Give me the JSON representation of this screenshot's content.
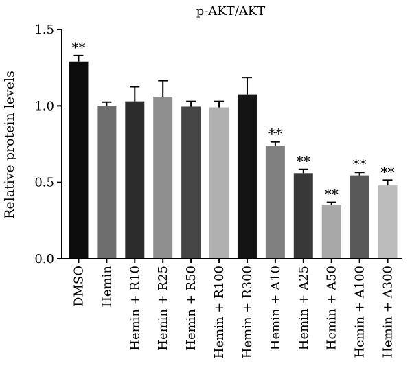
{
  "chart_data": {
    "type": "bar",
    "title": "p-AKT/AKT",
    "ylabel": "Relative protein levels",
    "xlabel": "",
    "ylim": [
      0,
      1.5
    ],
    "yticks": [
      0.0,
      0.5,
      1.0,
      1.5
    ],
    "ytick_labels": [
      "0.0",
      "0.5",
      "1.0",
      "1.5"
    ],
    "categories": [
      "DMSO",
      "Hemin",
      "Hemin + R10",
      "Hemin + R25",
      "Hemin + R50",
      "Hemin + R100",
      "Hemin + R300",
      "Hemin + A10",
      "Hemin + A25",
      "Hemin + A50",
      "Hemin + A100",
      "Hemin + A300"
    ],
    "values": [
      1.29,
      1.0,
      1.03,
      1.06,
      0.995,
      0.99,
      1.075,
      0.74,
      0.56,
      0.35,
      0.545,
      0.48
    ],
    "errors": [
      0.04,
      0.025,
      0.095,
      0.105,
      0.035,
      0.04,
      0.11,
      0.025,
      0.025,
      0.02,
      0.02,
      0.035
    ],
    "significance": [
      "**",
      "",
      "",
      "",
      "",
      "",
      "",
      "**",
      "**",
      "**",
      "**",
      "**"
    ],
    "colors": [
      "#0d0d0d",
      "#6e6e6e",
      "#2c2c2c",
      "#8f8f8f",
      "#464646",
      "#b0b0b0",
      "#141414",
      "#808080",
      "#383838",
      "#a8a8a8",
      "#595959",
      "#bcbcbc"
    ],
    "grid": false,
    "legend": "none"
  }
}
